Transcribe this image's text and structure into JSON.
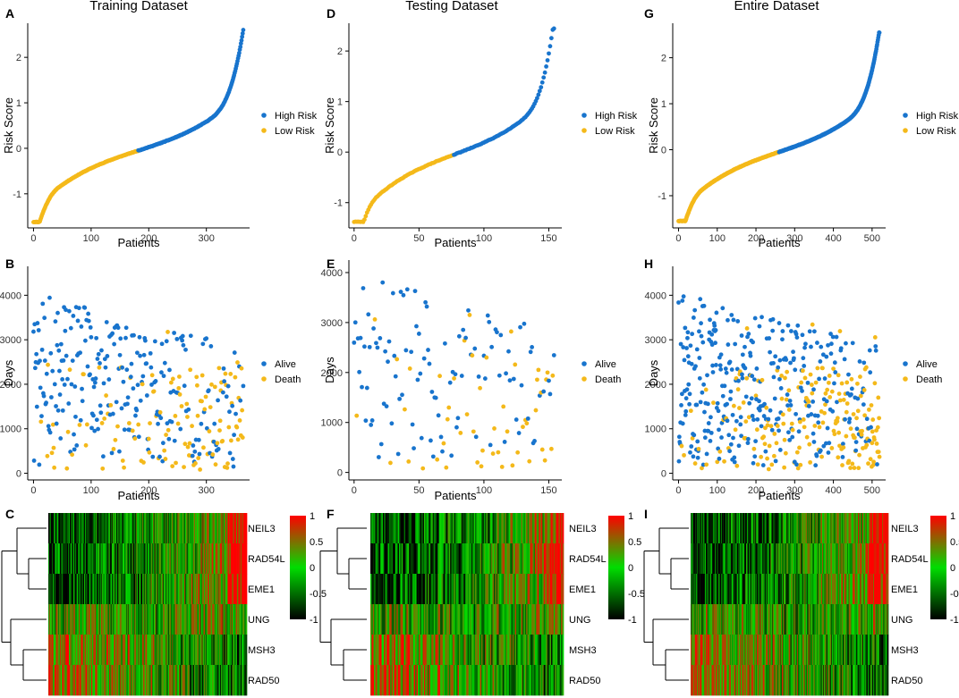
{
  "colors": {
    "high": "#1874CD",
    "low": "#F4B91A",
    "alive": "#1874CD",
    "death": "#F4B91A",
    "heat_low": "#000000",
    "heat_mid": "#00DD00",
    "heat_high": "#FF0000"
  },
  "columns": [
    {
      "id": "training",
      "title": "Training Dataset",
      "n": 365,
      "seed": 11,
      "risk": {
        "letter": "A",
        "xticks": [
          0,
          100,
          200,
          300
        ],
        "xlim": [
          -10,
          375
        ],
        "ylim": [
          -1.75,
          2.75
        ],
        "yticks": [
          -1,
          0,
          1,
          2
        ],
        "split": 182,
        "min": -1.62,
        "max": 2.62
      },
      "surv": {
        "letter": "B",
        "xticks": [
          0,
          100,
          200,
          300
        ],
        "xlim": [
          -10,
          375
        ],
        "ylim": [
          -150,
          4650
        ],
        "yticks": [
          0,
          1000,
          2000,
          3000,
          4000
        ]
      },
      "heat": {
        "letter": "C"
      }
    },
    {
      "id": "testing",
      "title": "Testing Dataset",
      "n": 155,
      "seed": 29,
      "risk": {
        "letter": "D",
        "xticks": [
          0,
          50,
          100,
          150
        ],
        "xlim": [
          -4,
          160
        ],
        "ylim": [
          -1.5,
          2.55
        ],
        "yticks": [
          -1,
          0,
          1,
          2
        ],
        "split": 77,
        "min": -1.38,
        "max": 2.45
      },
      "surv": {
        "letter": "E",
        "xticks": [
          0,
          50,
          100,
          150
        ],
        "xlim": [
          -4,
          160
        ],
        "ylim": [
          -150,
          4250
        ],
        "yticks": [
          0,
          1000,
          2000,
          3000,
          4000
        ]
      },
      "heat": {
        "letter": "F"
      }
    },
    {
      "id": "entire",
      "title": "Entire Dataset",
      "n": 520,
      "seed": 47,
      "risk": {
        "letter": "G",
        "xticks": [
          0,
          100,
          200,
          300,
          400,
          500
        ],
        "xlim": [
          -15,
          535
        ],
        "ylim": [
          -1.7,
          2.75
        ],
        "yticks": [
          -1,
          0,
          1,
          2
        ],
        "split": 260,
        "min": -1.55,
        "max": 2.55
      },
      "surv": {
        "letter": "H",
        "xticks": [
          0,
          100,
          200,
          300,
          400,
          500
        ],
        "xlim": [
          -15,
          535
        ],
        "ylim": [
          -150,
          4650
        ],
        "yticks": [
          0,
          1000,
          2000,
          3000,
          4000
        ]
      },
      "heat": {
        "letter": "I"
      }
    }
  ],
  "labels": {
    "x": "Patients",
    "risk_y": "Risk Score",
    "surv_y": "Days",
    "legend_risk": [
      "High Risk",
      "Low Risk"
    ],
    "legend_surv": [
      "Alive",
      "Death"
    ]
  },
  "genes": [
    "NEIL3",
    "RAD54L",
    "EME1",
    "UNG",
    "MSH3",
    "RAD50"
  ],
  "colorbar_ticks": [
    "1",
    "0.5",
    "0",
    "-0.5",
    "-1"
  ],
  "chart_data": [
    {
      "type": "scatter",
      "title": "Training Dataset",
      "xlabel": "Patients",
      "ylabel": "Risk Score",
      "n": 365,
      "high_from": 182,
      "range": [
        -1.62,
        2.62
      ],
      "series": [
        "High Risk",
        "Low Risk"
      ]
    },
    {
      "type": "scatter",
      "title": "Testing Dataset",
      "xlabel": "Patients",
      "ylabel": "Risk Score",
      "n": 155,
      "high_from": 77,
      "range": [
        -1.38,
        2.45
      ],
      "series": [
        "High Risk",
        "Low Risk"
      ]
    },
    {
      "type": "scatter",
      "title": "Entire Dataset",
      "xlabel": "Patients",
      "ylabel": "Risk Score",
      "n": 520,
      "high_from": 260,
      "range": [
        -1.55,
        2.55
      ],
      "series": [
        "High Risk",
        "Low Risk"
      ]
    },
    {
      "type": "scatter",
      "xlabel": "Patients",
      "ylabel": "Days",
      "series": [
        "Alive",
        "Death"
      ],
      "dataset": "Training"
    },
    {
      "type": "scatter",
      "xlabel": "Patients",
      "ylabel": "Days",
      "series": [
        "Alive",
        "Death"
      ],
      "dataset": "Testing"
    },
    {
      "type": "scatter",
      "xlabel": "Patients",
      "ylabel": "Days",
      "series": [
        "Alive",
        "Death"
      ],
      "dataset": "Entire"
    },
    {
      "type": "heatmap",
      "rows": [
        "NEIL3",
        "RAD54L",
        "EME1",
        "UNG",
        "MSH3",
        "RAD50"
      ],
      "scale": [
        -1,
        1
      ]
    }
  ]
}
